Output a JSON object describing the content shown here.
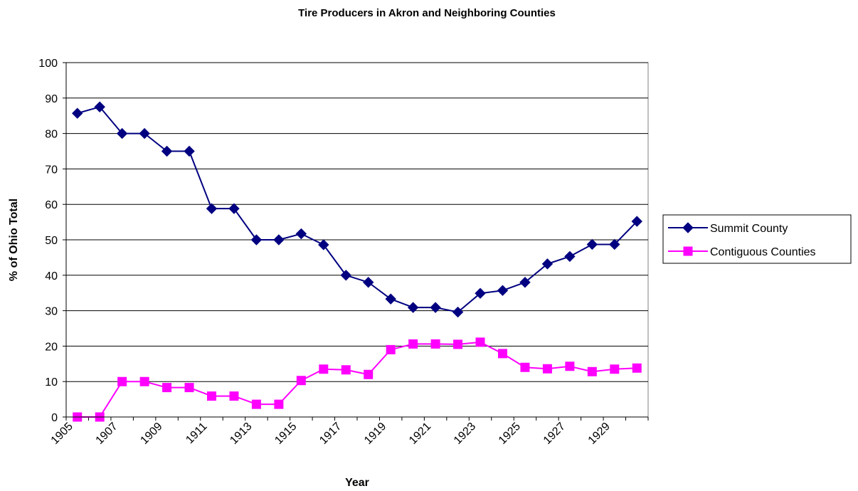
{
  "chart_data": {
    "type": "line",
    "title": "Tire Producers in Akron and Neighboring Counties",
    "xlabel": "Year",
    "ylabel": "% of Ohio Total",
    "ylim": [
      0,
      100
    ],
    "yticks": [
      "0",
      "10",
      "20",
      "30",
      "40",
      "50",
      "60",
      "70",
      "80",
      "90",
      "100"
    ],
    "x": [
      1905,
      1906,
      1907,
      1908,
      1909,
      1910,
      1911,
      1912,
      1913,
      1914,
      1915,
      1916,
      1917,
      1918,
      1919,
      1920,
      1921,
      1922,
      1923,
      1924,
      1925,
      1926,
      1927,
      1928,
      1929,
      1930
    ],
    "xtick_labels": [
      "1905",
      "1907",
      "1909",
      "1911",
      "1913",
      "1915",
      "1917",
      "1919",
      "1921",
      "1923",
      "1925",
      "1927",
      "1929"
    ],
    "grid": "horizontal",
    "legend_position": "right",
    "series": [
      {
        "name": "Summit County",
        "color": "#000080",
        "marker": "diamond",
        "values": [
          85.7,
          87.5,
          80.0,
          80.0,
          75.0,
          75.0,
          58.8,
          58.8,
          50.0,
          50.0,
          51.7,
          48.6,
          40.0,
          38.0,
          33.3,
          30.9,
          30.9,
          29.6,
          34.9,
          35.7,
          38.0,
          43.2,
          45.3,
          48.7,
          48.7,
          55.2
        ]
      },
      {
        "name": "Contiguous Counties",
        "color": "#FF00FF",
        "marker": "square",
        "values": [
          0.0,
          0.0,
          10.0,
          10.0,
          8.3,
          8.3,
          5.9,
          5.9,
          3.6,
          3.6,
          10.3,
          13.5,
          13.3,
          12.0,
          19.0,
          20.6,
          20.6,
          20.5,
          21.1,
          17.9,
          14.0,
          13.6,
          14.3,
          12.8,
          13.5,
          13.8
        ]
      }
    ]
  }
}
